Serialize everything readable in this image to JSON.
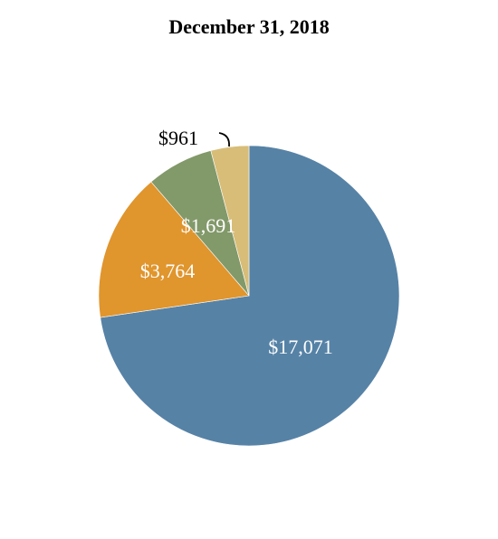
{
  "chart_data": {
    "type": "pie",
    "title": "December 31, 2018",
    "slices": [
      {
        "value": 17071,
        "label": "$17,071",
        "color": "#5682a6"
      },
      {
        "value": 3764,
        "label": "$3,764",
        "color": "#e0952d"
      },
      {
        "value": 1691,
        "label": "$1,691",
        "color": "#82996a"
      },
      {
        "value": 961,
        "label": "$961",
        "color": "#d8bd78"
      }
    ],
    "start": "12 o'clock",
    "direction": "clockwise",
    "legend": "none"
  }
}
